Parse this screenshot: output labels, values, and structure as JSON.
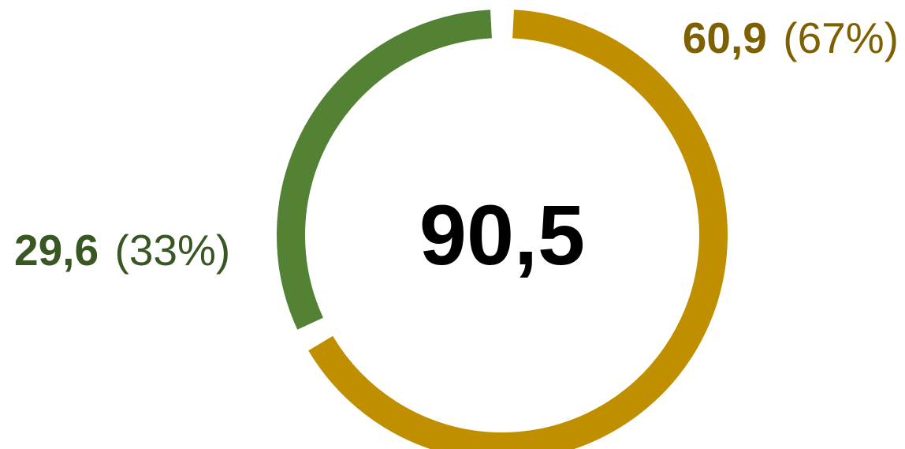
{
  "chart_data": {
    "type": "pie",
    "variant": "donut",
    "total_label": "90,5",
    "slices": [
      {
        "value": 60.9,
        "value_label": "60,9",
        "percent_label": "(67%)",
        "color": "#bf8f00",
        "label_color": "#7f6000",
        "label_position": "top-right"
      },
      {
        "value": 29.6,
        "value_label": "29,6",
        "percent_label": "(33%)",
        "color": "#548235",
        "label_color": "#385723",
        "label_position": "left"
      }
    ]
  }
}
